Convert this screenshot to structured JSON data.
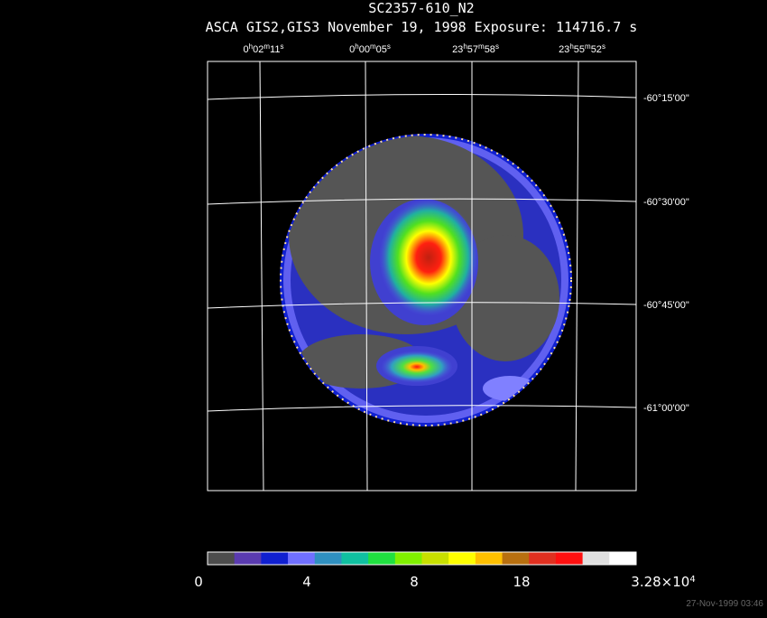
{
  "header": {
    "title": "SC2357-610_N2",
    "subtitle": "ASCA GIS2,GIS3 November 19, 1998 Exposure: 114716.7 s"
  },
  "ra_labels": [
    [
      "0",
      "h",
      "02",
      "m",
      "11",
      "s"
    ],
    [
      "0",
      "h",
      "00",
      "m",
      "05",
      "s"
    ],
    [
      "23",
      "h",
      "57",
      "m",
      "58",
      "s"
    ],
    [
      "23",
      "h",
      "55",
      "m",
      "52",
      "s"
    ]
  ],
  "dec_labels": [
    "-60°15'00\"",
    "-60°30'00\"",
    "-60°45'00\"",
    "-61°00'00\""
  ],
  "colorbar": {
    "colors": [
      "#4d4d4d",
      "#5a3bb0",
      "#1020d0",
      "#7070ff",
      "#3090c0",
      "#10c0a0",
      "#20e040",
      "#80f000",
      "#c8e000",
      "#ffff00",
      "#ffc000",
      "#b87010",
      "#e03020",
      "#ff1010",
      "#e0e0e0",
      "#ffffff"
    ],
    "labels": [
      [
        "0"
      ],
      [
        "4"
      ],
      [
        "8"
      ],
      [
        "18"
      ],
      [
        "3.28×10",
        "4"
      ]
    ]
  },
  "timestamp": "27-Nov-1999 03:46"
}
